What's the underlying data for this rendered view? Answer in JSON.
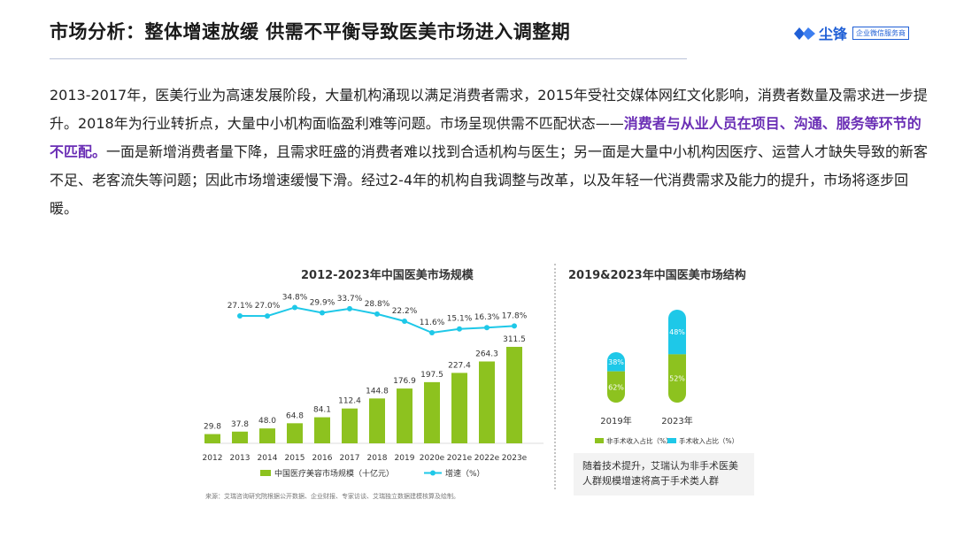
{
  "header": {
    "title": "市场分析：整体增速放缓 供需不平衡导致医美市场进入调整期",
    "logo_text": "尘锋",
    "logo_badge": "企业微信服务商"
  },
  "intro": {
    "part1": "2013-2017年，医美行业为高速发展阶段，大量机构涌现以满足消费者需求，2015年受社交媒体网红文化影响，消费者数量及需求进一步提升。2018年为行业转折点，大量中小机构面临盈利难等问题。市场呈现供需不匹配状态——",
    "highlight": "消费者与从业人员在项目、沟通、服务等环节的不匹配。",
    "part2": "一面是新增消费者量下降，且需求旺盛的消费者难以找到合适机构与医生；另一面是大量中小机构因医疗、运营人才缺失导致的新客不足、老客流失等问题；因此市场增速缓慢下滑。经过2-4年的机构自我调整与改革，以及年轻一代消费需求及能力的提升，市场将逐步回暖。"
  },
  "chart_data": [
    {
      "type": "bar",
      "title": "2012-2023年中国医美市场规模",
      "categories": [
        "2012",
        "2013",
        "2014",
        "2015",
        "2016",
        "2017",
        "2018",
        "2019",
        "2020e",
        "2021e",
        "2022e",
        "2023e"
      ],
      "series": [
        {
          "name": "中国医疗美容市场规模（十亿元）",
          "type": "bar",
          "values": [
            29.8,
            37.8,
            48.0,
            64.8,
            84.1,
            112.4,
            144.8,
            176.9,
            197.5,
            227.4,
            264.3,
            311.5
          ],
          "labels": [
            "29.8",
            "37.8",
            "48.0",
            "64.8",
            "84.1",
            "112.4",
            "144.8",
            "176.9",
            "197.5",
            "227.4",
            "264.3",
            "311.5"
          ]
        },
        {
          "name": "增速（%）",
          "type": "line",
          "values": [
            null,
            27.1,
            27.0,
            34.8,
            29.9,
            33.7,
            28.8,
            22.2,
            11.6,
            15.1,
            16.3,
            17.8
          ],
          "labels": [
            "",
            "27.1%",
            "27.0%",
            "34.8%",
            "29.9%",
            "33.7%",
            "28.8%",
            "22.2%",
            "11.6%",
            "15.1%",
            "16.3%",
            "17.8%"
          ]
        }
      ],
      "legend_position": "bottom",
      "colors": {
        "bar": "#8dc21f",
        "line": "#1ec8e8"
      }
    },
    {
      "type": "bar",
      "stacked": true,
      "title": "2019&2023年中国医美市场结构",
      "categories": [
        "2019年",
        "2023年"
      ],
      "series": [
        {
          "name": "非手术收入占比（%）",
          "values": [
            62,
            52
          ],
          "labels": [
            "62%",
            "52%"
          ]
        },
        {
          "name": "手术收入占比（%）",
          "values": [
            38,
            48
          ],
          "labels": [
            "38%",
            "48%"
          ]
        }
      ],
      "legend_position": "bottom",
      "colors": {
        "non_surgical": "#8dc21f",
        "surgical": "#1ec8e8"
      }
    }
  ],
  "note": "随着技术提升，艾瑞认为非手术医美人群规模增速将高于手术类人群",
  "source": "来源：艾瑞咨询研究院根据公开数据、企业财报、专家访谈、艾瑞独立数据建模核算及绘制。"
}
